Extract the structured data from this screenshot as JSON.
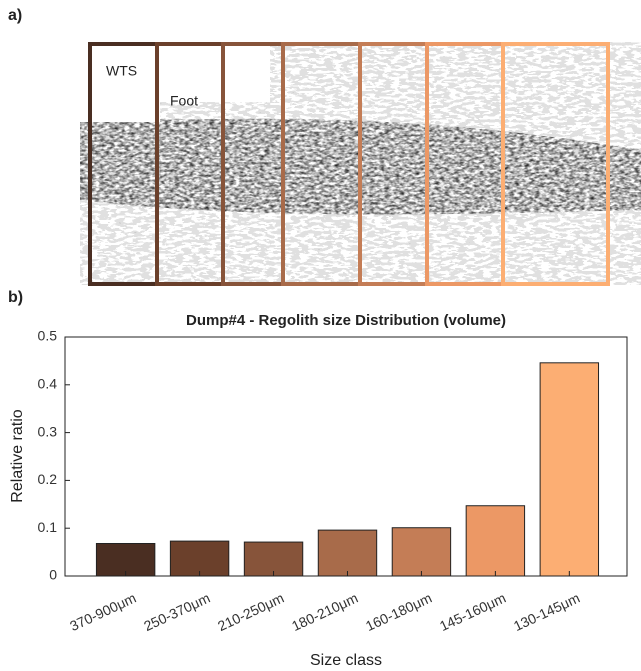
{
  "panels": {
    "a": "a)",
    "b": "b)"
  },
  "image": {
    "labels": [
      "WTS",
      "Foot"
    ]
  },
  "chart_data": {
    "type": "bar",
    "title": "Dump#4 - Regolith size Distribution (volume)",
    "categories": [
      "370-900μm",
      "250-370μm",
      "210-250μm",
      "180-210μm",
      "160-180μm",
      "145-160μm",
      "130-145μm"
    ],
    "values": [
      0.068,
      0.073,
      0.071,
      0.096,
      0.101,
      0.147,
      0.446
    ],
    "colors": [
      "#4a2e22",
      "#6b402b",
      "#87543a",
      "#a86b4a",
      "#c47d56",
      "#ec9865",
      "#fcae73"
    ],
    "xlabel": "Size class",
    "ylabel": "Relative ratio",
    "ylim": [
      0,
      0.5
    ],
    "yticks": [
      0,
      0.1,
      0.2,
      0.3,
      0.4,
      0.5
    ]
  }
}
